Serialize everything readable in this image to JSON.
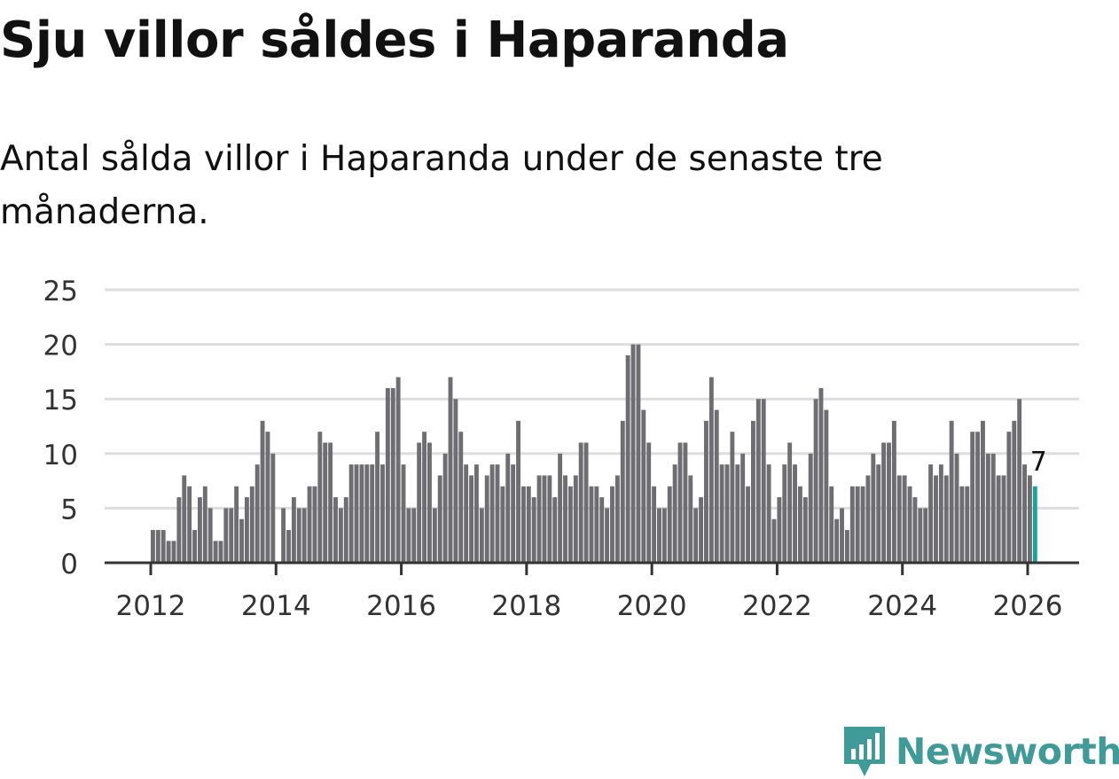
{
  "title": "Sju villor såldes i Haparanda",
  "subtitle": "Antal sålda villor i Haparanda under de senaste tre månaderna.",
  "brand": {
    "name": "Newsworthy",
    "icon": "bar-chart-speech-bubble-icon",
    "color": "#3f9b98"
  },
  "colors": {
    "bar": "#6e6d72",
    "highlight": "#1aa39c",
    "grid": "#dddddd",
    "axis": "#333333",
    "text": "#333333"
  },
  "chart_data": {
    "type": "bar",
    "title": "Sju villor såldes i Haparanda",
    "subtitle": "Antal sålda villor i Haparanda under de senaste tre månaderna.",
    "xlabel": "",
    "ylabel": "",
    "ylim": [
      0,
      25
    ],
    "y_ticks": [
      0,
      5,
      10,
      15,
      20,
      25
    ],
    "x_start": 2012,
    "x_end": 2026.1,
    "x_ticks": [
      2012,
      2014,
      2016,
      2018,
      2020,
      2022,
      2024,
      2026
    ],
    "x_tick_labels": [
      "2012",
      "2014",
      "2016",
      "2018",
      "2020",
      "2022",
      "2024",
      "2026"
    ],
    "grid": true,
    "bar_period": "monthly",
    "values": [
      3,
      3,
      3,
      2,
      2,
      6,
      8,
      7,
      3,
      6,
      7,
      5,
      2,
      2,
      5,
      5,
      7,
      4,
      6,
      7,
      9,
      13,
      12,
      10,
      0,
      5,
      3,
      6,
      5,
      5,
      7,
      7,
      12,
      11,
      11,
      6,
      5,
      6,
      9,
      9,
      9,
      9,
      9,
      12,
      9,
      16,
      16,
      17,
      9,
      5,
      5,
      11,
      12,
      11,
      5,
      8,
      10,
      17,
      15,
      12,
      9,
      8,
      9,
      5,
      8,
      9,
      9,
      7,
      10,
      9,
      13,
      7,
      7,
      6,
      8,
      8,
      8,
      6,
      10,
      8,
      7,
      8,
      11,
      11,
      7,
      7,
      6,
      5,
      7,
      8,
      13,
      19,
      20,
      20,
      14,
      11,
      7,
      5,
      5,
      7,
      9,
      11,
      11,
      8,
      5,
      6,
      13,
      17,
      14,
      9,
      9,
      12,
      9,
      10,
      7,
      13,
      15,
      15,
      9,
      4,
      6,
      9,
      11,
      9,
      7,
      6,
      10,
      15,
      16,
      14,
      7,
      4,
      5,
      3,
      7,
      7,
      7,
      8,
      10,
      9,
      11,
      11,
      13,
      8,
      8,
      7,
      6,
      5,
      5,
      9,
      8,
      9,
      8,
      13,
      10,
      7,
      7,
      12,
      12,
      13,
      10,
      10,
      8,
      8,
      12,
      13,
      15,
      9,
      8,
      7
    ],
    "highlight_last": true,
    "last_value_label": "7"
  }
}
